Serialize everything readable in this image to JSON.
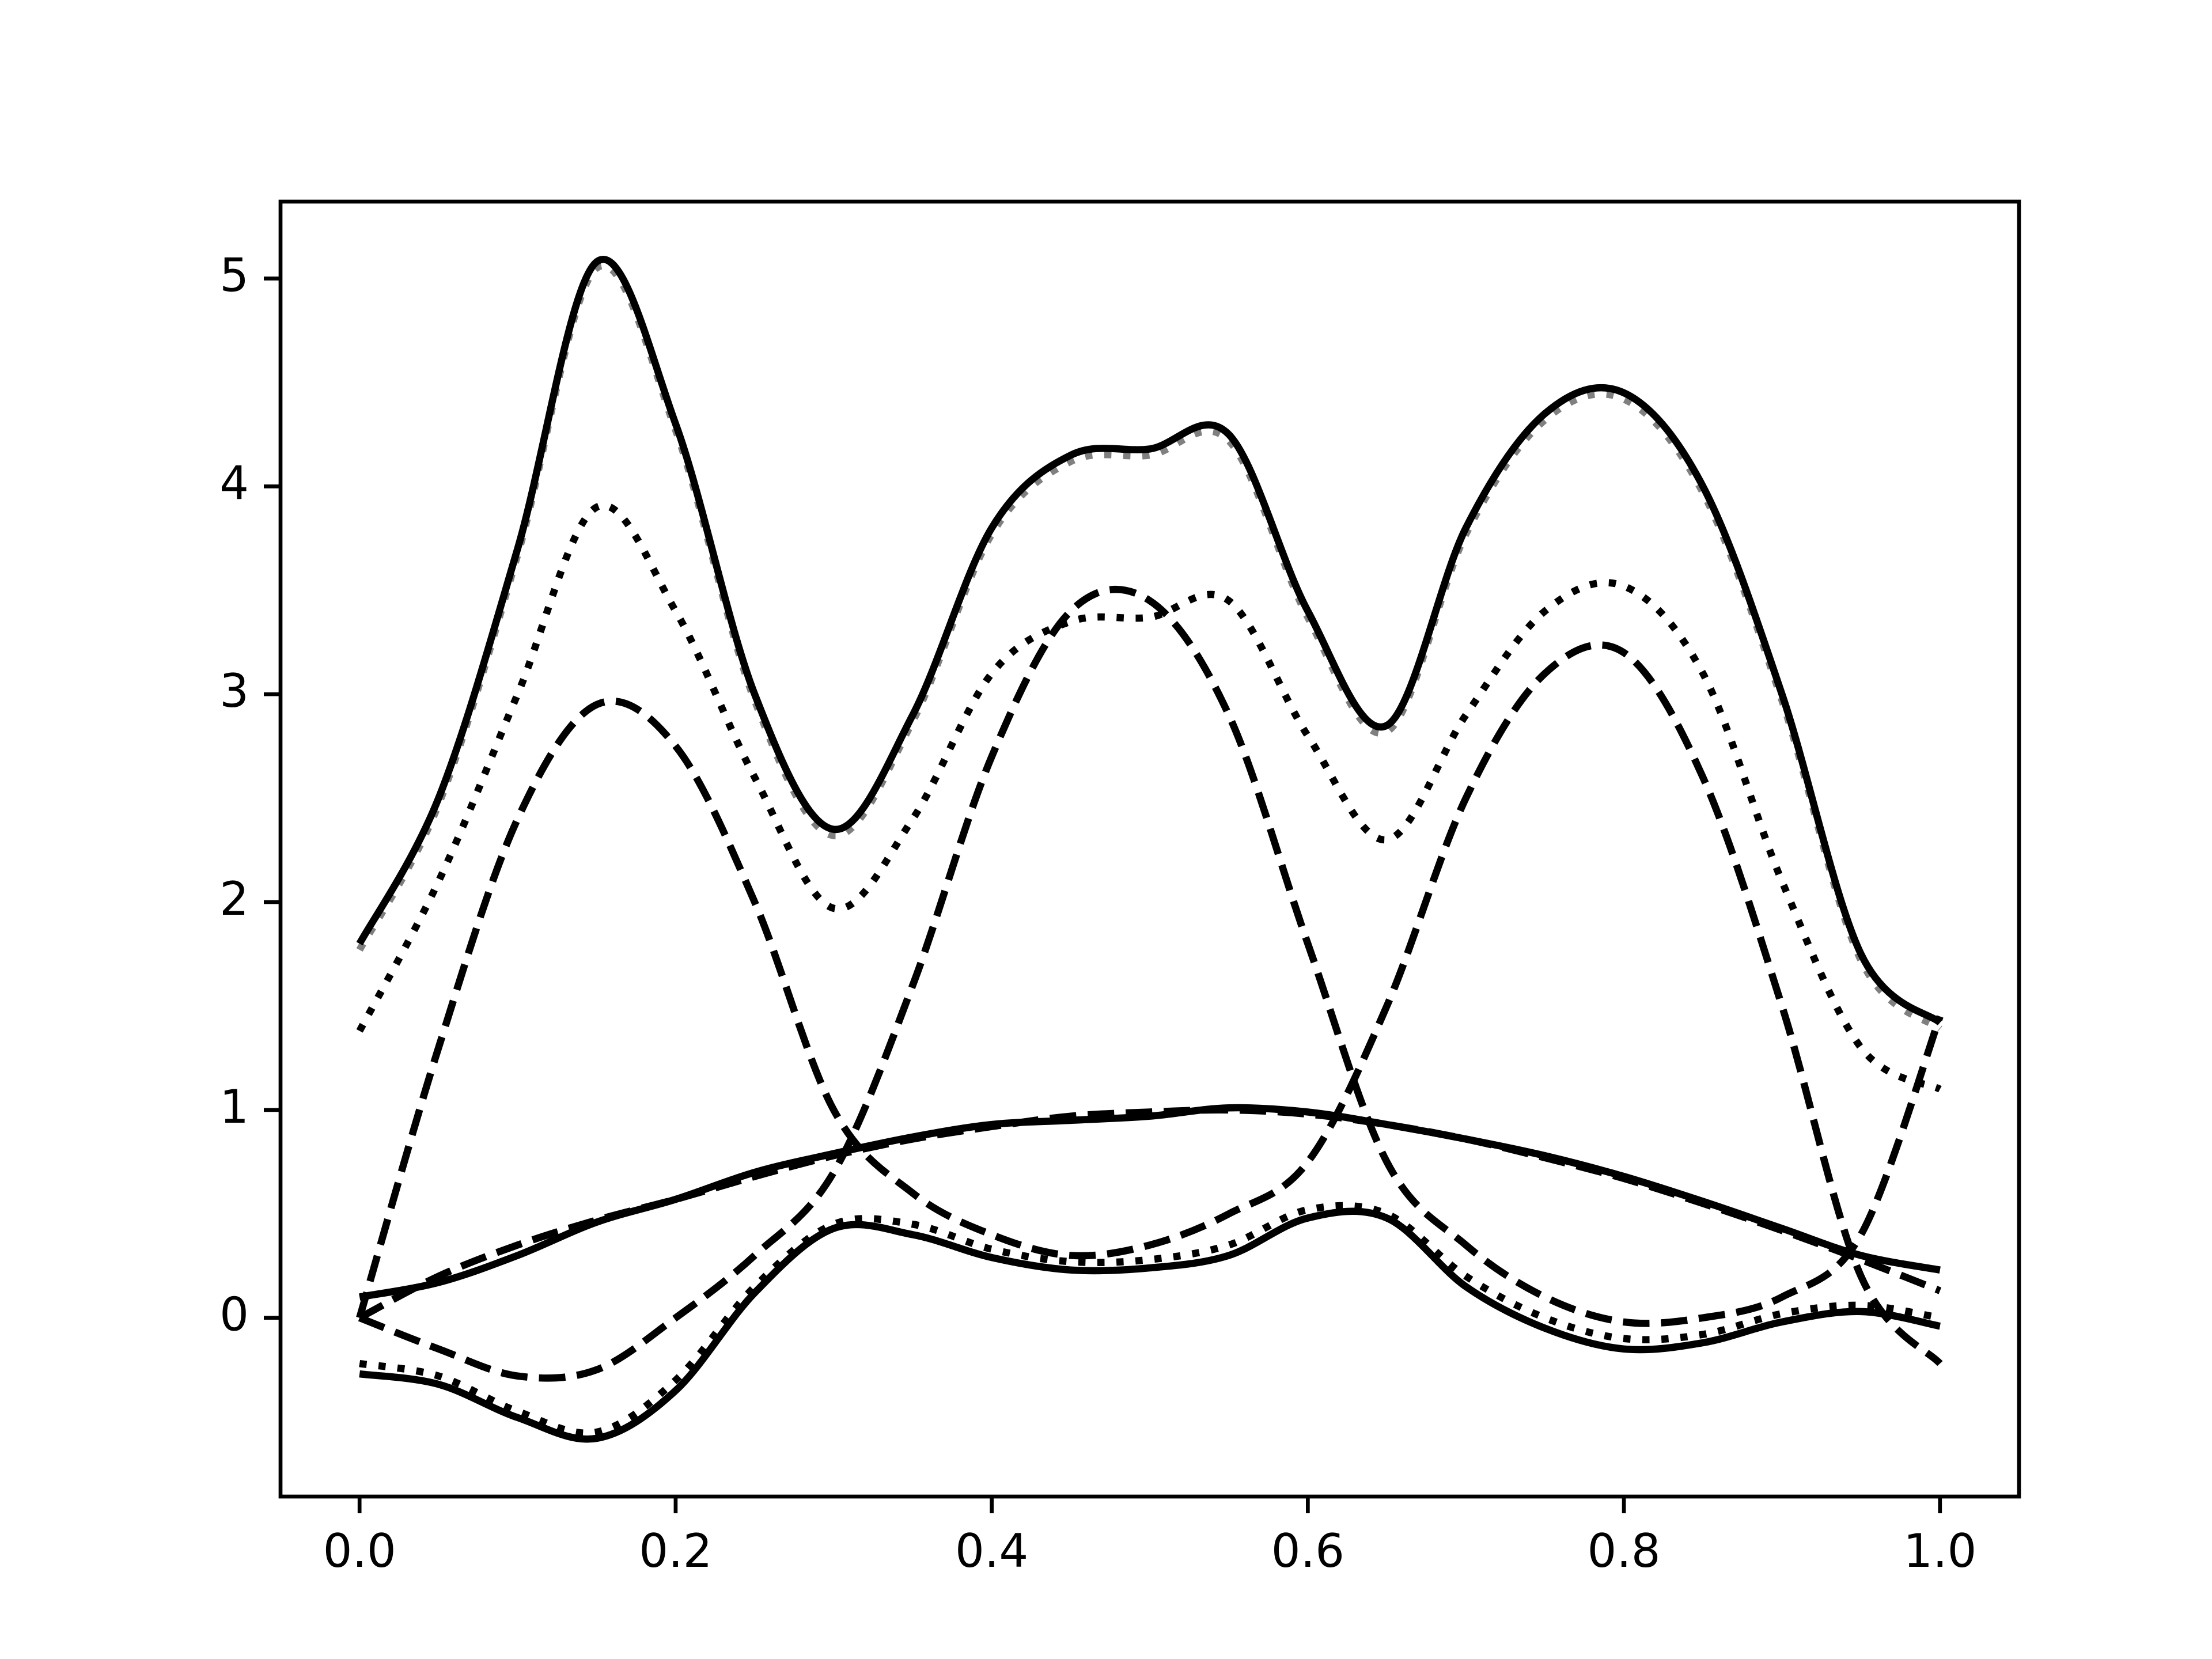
{
  "chart_data": {
    "type": "line",
    "x": [
      0,
      0.05,
      0.1,
      0.15,
      0.2,
      0.25,
      0.3,
      0.35,
      0.4,
      0.45,
      0.5,
      0.55,
      0.6,
      0.65,
      0.7,
      0.75,
      0.8,
      0.85,
      0.9,
      0.95,
      1.0
    ],
    "series": [
      {
        "color": "#808080",
        "style": "dotted",
        "values": [
          1.77,
          2.47,
          3.67,
          5.05,
          4.27,
          2.97,
          2.32,
          2.87,
          3.77,
          4.12,
          4.15,
          4.22,
          3.37,
          2.82,
          3.77,
          4.32,
          4.42,
          3.97,
          2.97,
          1.72,
          1.39
        ]
      },
      {
        "color": "#000000",
        "style": "solid",
        "values": [
          1.8,
          2.5,
          3.7,
          5.08,
          4.3,
          3.0,
          2.35,
          2.9,
          3.8,
          4.15,
          4.18,
          4.25,
          3.4,
          2.85,
          3.8,
          4.35,
          4.45,
          4.0,
          3.0,
          1.75,
          1.42
        ]
      },
      {
        "color": "#000000",
        "style": "dotted",
        "values": [
          1.38,
          2.1,
          3.0,
          3.9,
          3.4,
          2.6,
          1.97,
          2.4,
          3.1,
          3.35,
          3.37,
          3.45,
          2.8,
          2.3,
          2.9,
          3.4,
          3.52,
          3.1,
          2.1,
          1.3,
          1.1
        ]
      },
      {
        "color": "#000000",
        "style": "dashed",
        "values": [
          0,
          1.3,
          2.4,
          2.95,
          2.75,
          2.0,
          1.0,
          0.6,
          0.4,
          0.3,
          0.35,
          0.5,
          0.75,
          1.5,
          2.5,
          3.1,
          3.2,
          2.6,
          1.5,
          0.2,
          -0.22
        ]
      },
      {
        "color": "#000000",
        "style": "dashed",
        "values": [
          0,
          -0.15,
          -0.28,
          -0.25,
          0.0,
          0.3,
          0.7,
          1.6,
          2.7,
          3.4,
          3.45,
          2.9,
          1.8,
          0.75,
          0.35,
          0.1,
          -0.02,
          0.0,
          0.1,
          0.4,
          1.45
        ]
      },
      {
        "color": "#000000",
        "style": "dashed",
        "values": [
          0,
          0.2,
          0.35,
          0.47,
          0.57,
          0.68,
          0.78,
          0.86,
          0.92,
          0.97,
          0.99,
          1.0,
          0.98,
          0.93,
          0.86,
          0.77,
          0.67,
          0.55,
          0.42,
          0.28,
          0.13
        ]
      },
      {
        "color": "#000000",
        "style": "solid",
        "values": [
          0.1,
          0.17,
          0.3,
          0.46,
          0.57,
          0.7,
          0.79,
          0.87,
          0.93,
          0.95,
          0.97,
          1.01,
          0.99,
          0.93,
          0.86,
          0.78,
          0.68,
          0.56,
          0.43,
          0.3,
          0.23
        ]
      },
      {
        "color": "#000000",
        "style": "dotted",
        "values": [
          -0.22,
          -0.28,
          -0.45,
          -0.55,
          -0.3,
          0.15,
          0.45,
          0.45,
          0.33,
          0.27,
          0.28,
          0.35,
          0.52,
          0.5,
          0.2,
          0.0,
          -0.1,
          -0.08,
          0.02,
          0.06,
          0.0
        ]
      },
      {
        "color": "#000000",
        "style": "solid",
        "values": [
          -0.27,
          -0.32,
          -0.48,
          -0.58,
          -0.35,
          0.12,
          0.43,
          0.4,
          0.29,
          0.23,
          0.24,
          0.3,
          0.48,
          0.48,
          0.15,
          -0.05,
          -0.15,
          -0.12,
          -0.02,
          0.03,
          -0.04
        ]
      }
    ],
    "xlim": [
      -0.05,
      1.05
    ],
    "ylim": [
      -0.86,
      5.37
    ],
    "xticks": [
      {
        "value": 0,
        "label": "0.0"
      },
      0.2,
      0.4,
      0.6,
      0.8,
      {
        "value": 1,
        "label": "1.0"
      }
    ],
    "yticks": [
      0,
      1,
      2,
      3,
      4,
      5
    ],
    "grid": false
  }
}
